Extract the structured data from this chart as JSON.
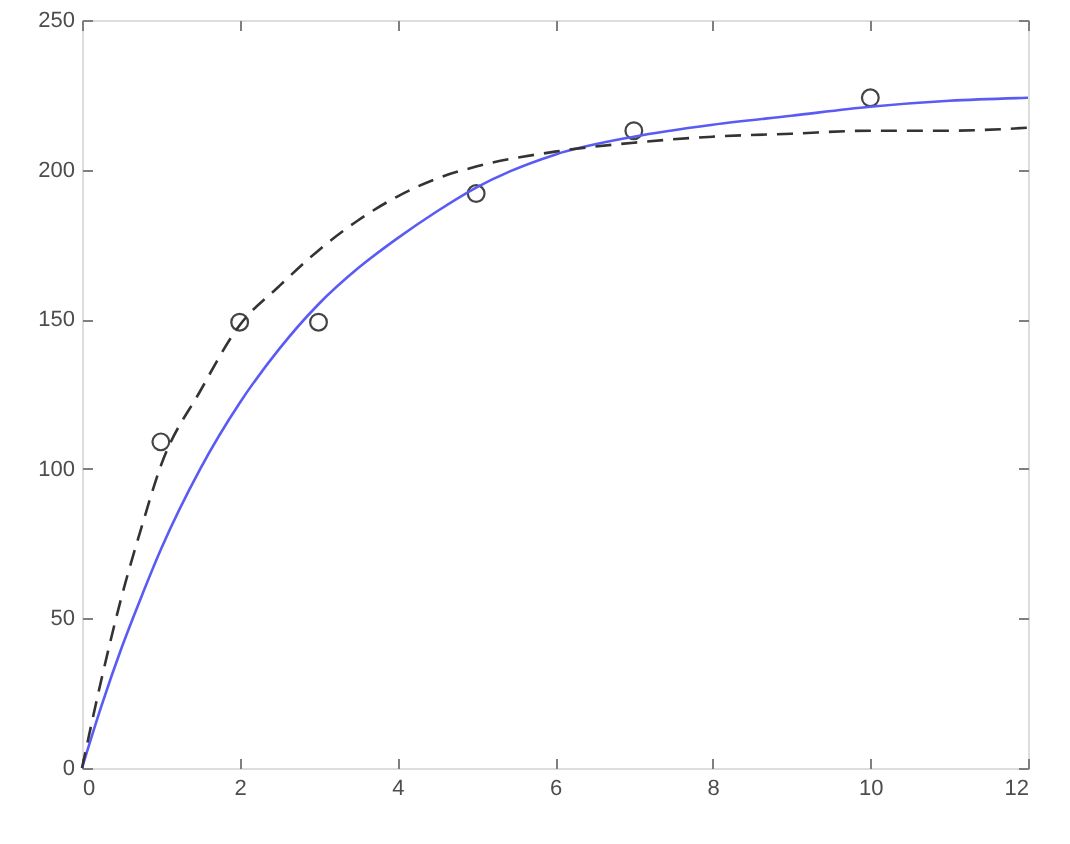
{
  "chart_data": {
    "type": "scatter",
    "series": [
      {
        "color": "#444444",
        "marker": "circle",
        "x": [
          1,
          2,
          3,
          5,
          7,
          10
        ],
        "values": [
          109,
          149,
          149,
          192,
          213,
          224
        ]
      },
      {
        "type": "line",
        "color": "#5a5af5",
        "line_style": "solid",
        "marker": "none",
        "x": [
          0,
          0.25,
          0.5,
          0.75,
          1,
          1.5,
          2,
          2.5,
          3,
          3.5,
          4,
          4.5,
          5,
          6,
          7,
          8,
          9,
          10,
          11,
          12
        ],
        "values": [
          0,
          21,
          40,
          57,
          73,
          100,
          122,
          140,
          155,
          167,
          177,
          186,
          194,
          205,
          211,
          215,
          218,
          221,
          223,
          224
        ]
      },
      {
        "type": "line",
        "color": "#333333",
        "line_style": "dashed",
        "marker": "none",
        "x": [
          0,
          0.25,
          0.5,
          0.75,
          1,
          1.5,
          2,
          2.5,
          3,
          3.5,
          4,
          4.5,
          5,
          6,
          7,
          8,
          9,
          10,
          11,
          12
        ],
        "values": [
          0,
          30,
          57,
          80,
          101,
          126,
          148,
          161,
          173,
          183,
          191,
          197,
          201,
          206,
          209,
          211,
          212,
          213,
          213,
          214
        ]
      }
    ],
    "xlim": [
      0,
      12
    ],
    "ylim": [
      0,
      250
    ],
    "xticks": [
      0,
      2,
      4,
      6,
      8,
      10,
      12
    ],
    "yticks": [
      0,
      50,
      100,
      150,
      200,
      250
    ],
    "grid": false
  }
}
